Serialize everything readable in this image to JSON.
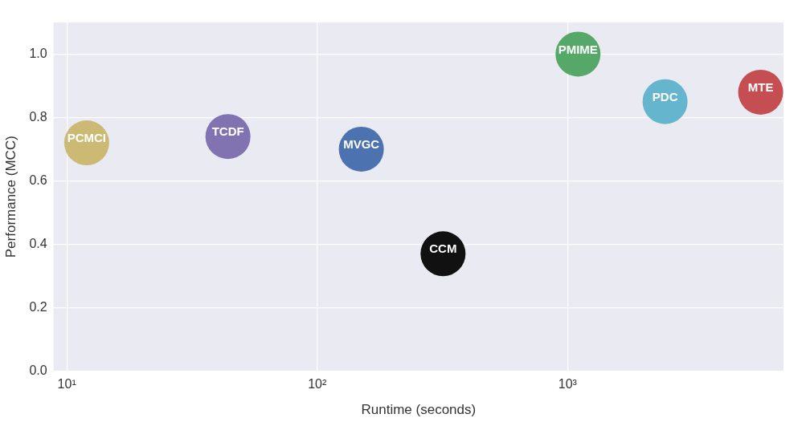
{
  "chart_data": {
    "type": "bubble",
    "xlabel": "Runtime (seconds)",
    "ylabel": "Performance (MCC)",
    "log": "x",
    "xlim": [
      8.85,
      7280
    ],
    "xticks": [
      {
        "value": 10,
        "label": "10¹"
      },
      {
        "value": 100,
        "label": "10²"
      },
      {
        "value": 1000,
        "label": "10³"
      }
    ],
    "ylim": [
      0,
      1.1
    ],
    "yticks": [
      {
        "value": 0,
        "label": "0.0"
      },
      {
        "value": 0.2,
        "label": "0.2"
      },
      {
        "value": 0.4,
        "label": "0.4"
      },
      {
        "value": 0.6,
        "label": "0.6"
      },
      {
        "value": 0.8,
        "label": "0.8"
      },
      {
        "value": 1,
        "label": "1.0"
      }
    ],
    "grid": true,
    "legend": false,
    "series": [
      {
        "name": "PCMCI",
        "color": "#ccb974",
        "x": [
          12
        ],
        "values": [
          0.72
        ],
        "sizes": [
          1
        ]
      },
      {
        "name": "TCDF",
        "color": "#8172b2",
        "x": [
          44
        ],
        "values": [
          0.74
        ],
        "sizes": [
          1
        ]
      },
      {
        "name": "MVGC",
        "color": "#4c72b0",
        "x": [
          150
        ],
        "values": [
          0.7
        ],
        "sizes": [
          1
        ]
      },
      {
        "name": "CCM",
        "color": "#111111",
        "x": [
          318
        ],
        "values": [
          0.37
        ],
        "sizes": [
          1
        ]
      },
      {
        "name": "PMIME",
        "color": "#55a868",
        "x": [
          1100
        ],
        "values": [
          1.0
        ],
        "sizes": [
          1
        ]
      },
      {
        "name": "PDC",
        "color": "#64b5cd",
        "x": [
          2450
        ],
        "values": [
          0.85
        ],
        "sizes": [
          1
        ]
      },
      {
        "name": "MTE",
        "color": "#c44e52",
        "x": [
          5900
        ],
        "values": [
          0.88
        ],
        "sizes": [
          1
        ]
      }
    ]
  }
}
